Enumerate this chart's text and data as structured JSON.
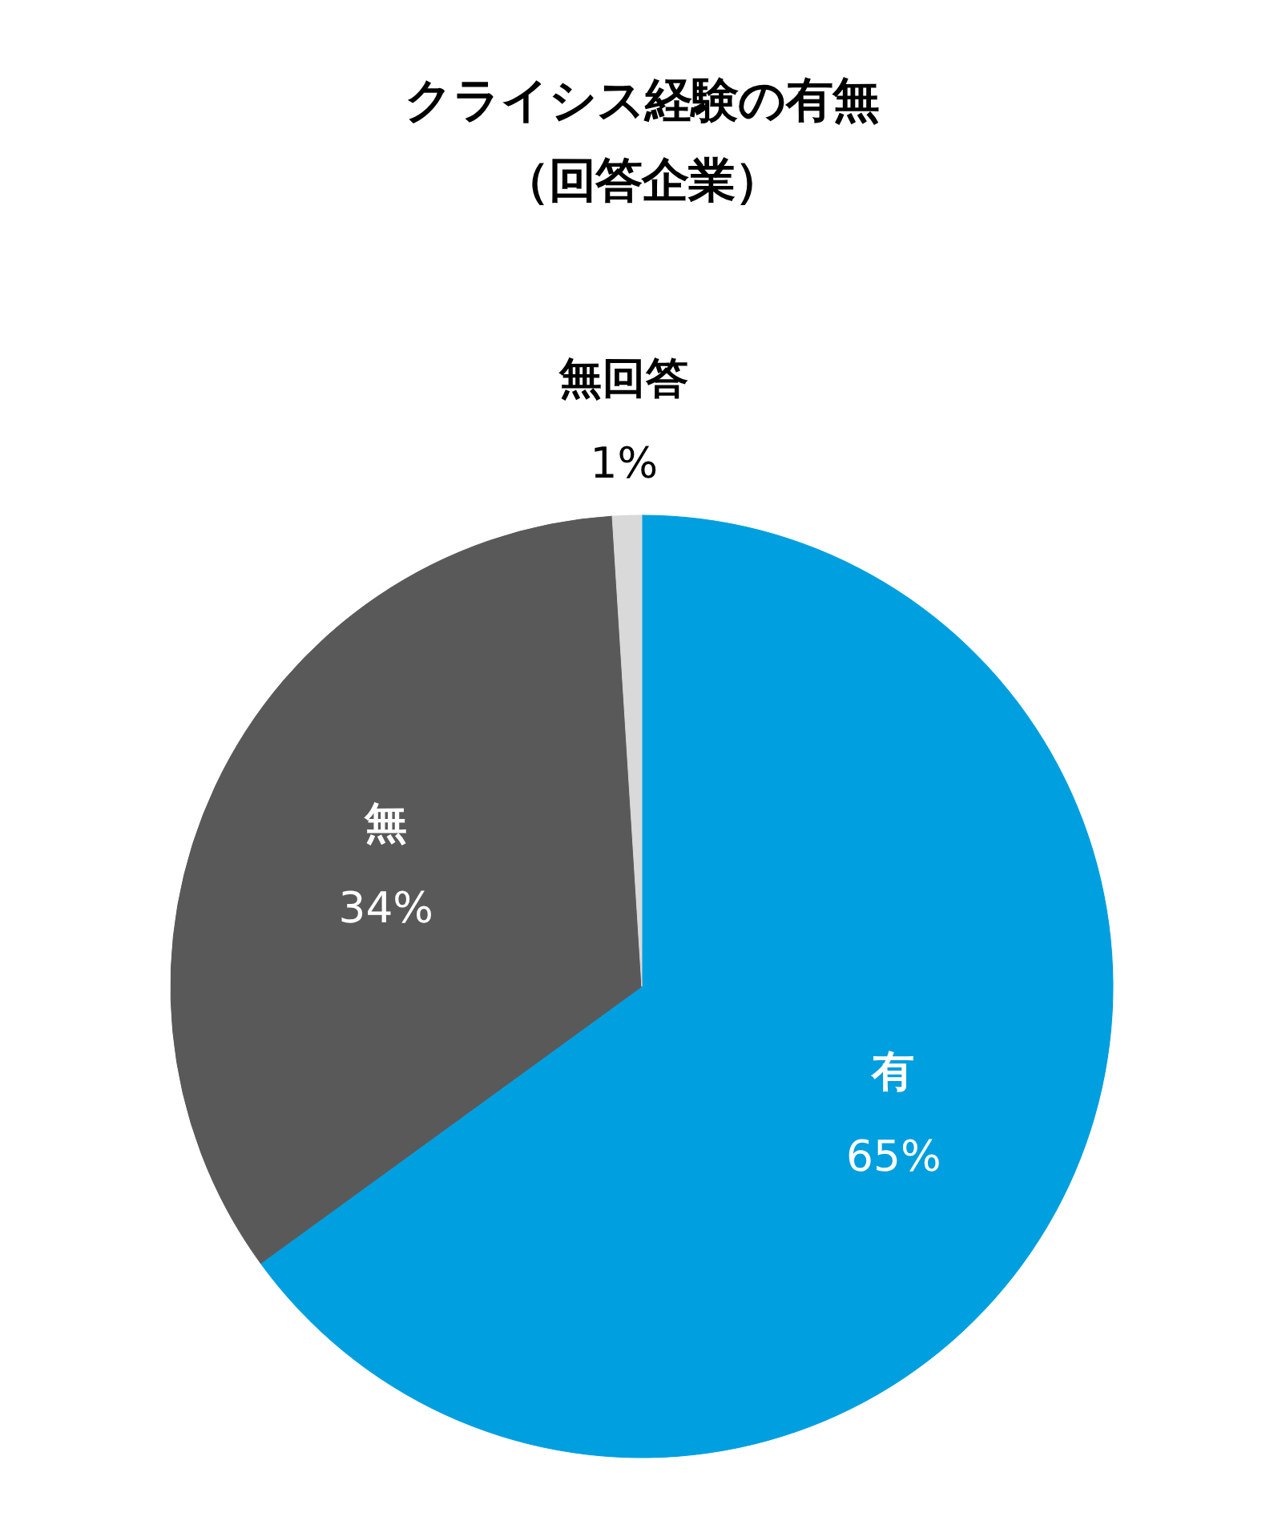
{
  "chart_data": {
    "type": "pie",
    "title": "クライシス経験の有無",
    "subtitle": "（回答企業）",
    "categories": [
      "有",
      "無",
      "無回答"
    ],
    "values": [
      65,
      34,
      1
    ],
    "colors": [
      "#009fdf",
      "#595959",
      "#d9d9d9"
    ],
    "value_labels": [
      "65%",
      "34%",
      "1%"
    ]
  }
}
